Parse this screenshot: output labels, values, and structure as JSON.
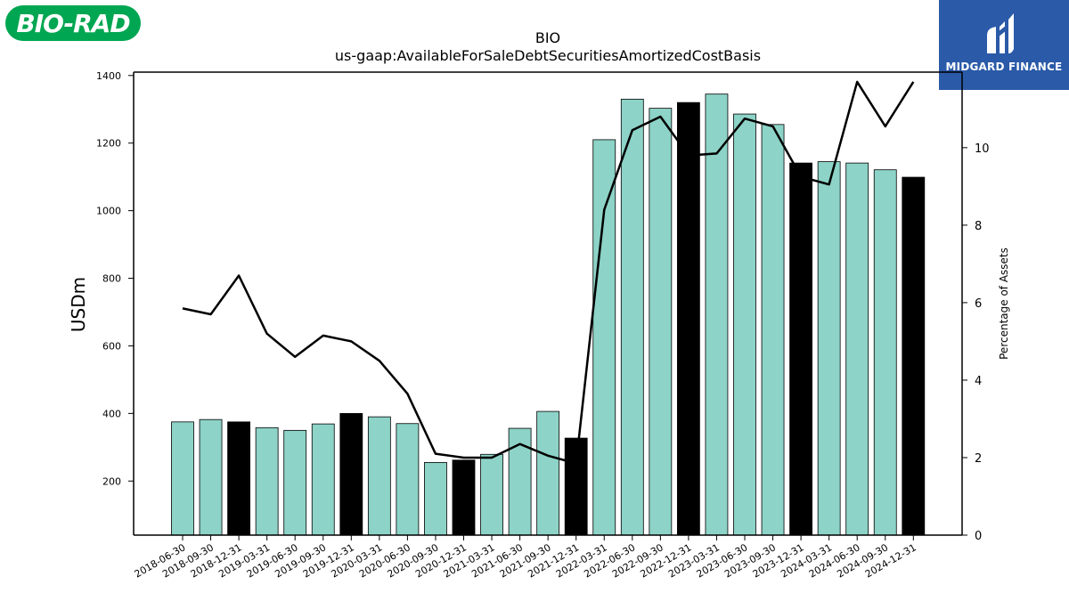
{
  "logos": {
    "left_text": "BIO-RAD",
    "right_text": "MIDGARD FINANCE",
    "left_color": "#00a651",
    "right_color": "#2a5aa8"
  },
  "chart_data": {
    "type": "bar",
    "title": "BIO",
    "subtitle": "us-gaap:AvailableForSaleDebtSecuritiesAmortizedCostBasis",
    "ylabel": "USDm",
    "y2label": "Percentage of Assets",
    "ylim": [
      40,
      1410
    ],
    "y2lim": [
      0,
      11.95
    ],
    "yticks": [
      200,
      400,
      600,
      800,
      1000,
      1200,
      1400
    ],
    "y2ticks": [
      0,
      2,
      4,
      6,
      8,
      10
    ],
    "grid": false,
    "categories": [
      "2018-06-30",
      "2018-09-30",
      "2018-12-31",
      "2019-03-31",
      "2019-06-30",
      "2019-09-30",
      "2019-12-31",
      "2020-03-31",
      "2020-06-30",
      "2020-09-30",
      "2020-12-31",
      "2021-03-31",
      "2021-06-30",
      "2021-09-30",
      "2021-12-31",
      "2022-03-31",
      "2022-06-30",
      "2022-09-30",
      "2022-12-31",
      "2023-03-31",
      "2023-06-30",
      "2023-09-30",
      "2023-12-31",
      "2024-03-31",
      "2024-06-30",
      "2024-09-30",
      "2024-12-31"
    ],
    "series": [
      {
        "kind": "bar",
        "values": [
          375,
          382,
          375,
          358,
          350,
          369,
          400,
          390,
          370,
          255,
          262,
          279,
          356,
          406,
          327,
          1210,
          1330,
          1303,
          1320,
          1345,
          1286,
          1255,
          1141,
          1145,
          1141,
          1121,
          1099
        ],
        "highlight": [
          false,
          false,
          true,
          false,
          false,
          false,
          true,
          false,
          false,
          false,
          true,
          false,
          false,
          false,
          true,
          false,
          false,
          false,
          true,
          false,
          false,
          false,
          true,
          false,
          false,
          false,
          true
        ]
      },
      {
        "kind": "line",
        "axis": "right",
        "values": [
          5.85,
          5.7,
          6.7,
          5.2,
          4.6,
          5.15,
          5.0,
          4.5,
          3.65,
          2.1,
          2.0,
          2.0,
          2.35,
          2.05,
          1.85,
          8.4,
          10.45,
          10.8,
          9.8,
          9.85,
          10.75,
          10.55,
          9.25,
          9.05,
          11.7,
          10.55,
          11.7
        ]
      }
    ],
    "colors": {
      "bar": "#8dd3c7",
      "bar_highlight": "#000000",
      "line": "#000000"
    }
  }
}
